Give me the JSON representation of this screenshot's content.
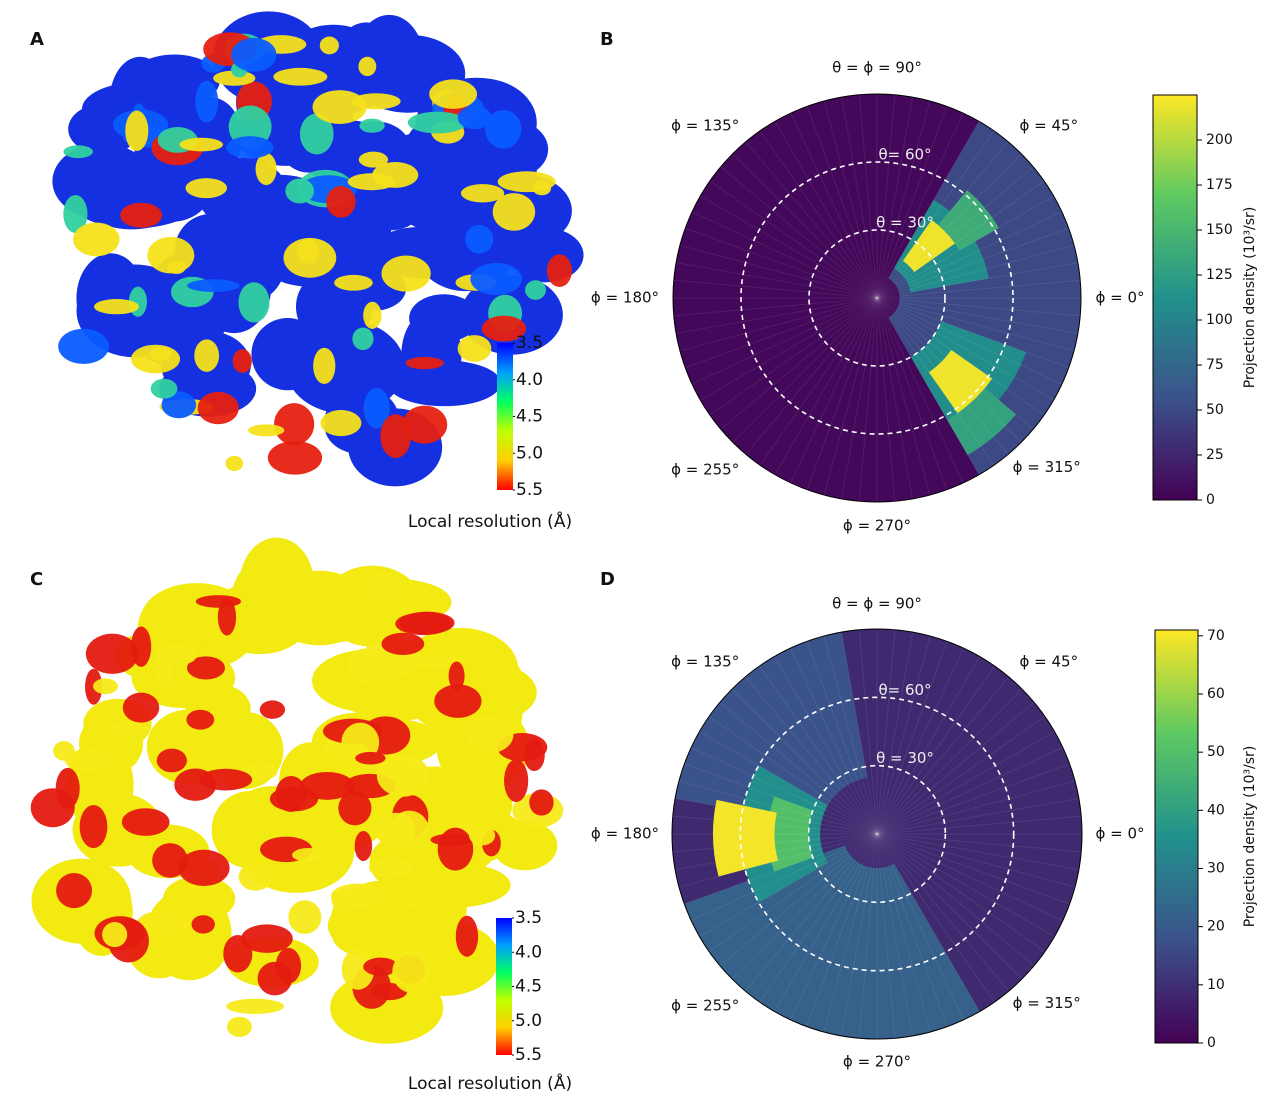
{
  "panels": [
    {
      "label": "A",
      "type": "map",
      "style": "mixed",
      "colorbar": {
        "title": "Local resolution (Å)",
        "lim": [
          3.5,
          5.5
        ],
        "ticks": [
          3.5,
          {
            "value": 4,
            "label": "4.0"
          },
          4.5,
          {
            "value": 5,
            "label": "5.0"
          },
          5.5
        ]
      }
    },
    {
      "label": "B",
      "type": "polar",
      "angle_labels": [
        "θ = ϕ = 90°",
        "ϕ = 45°",
        "ϕ = 0°",
        "ϕ = 315°",
        "ϕ = 270°",
        "ϕ = 255°",
        "ϕ = 180°",
        "ϕ = 135°"
      ],
      "rlim": [
        0,
        90
      ],
      "theta_circles": [
        {
          "value": 60,
          "label": "θ= 60°"
        },
        {
          "value": 30,
          "label": "θ = 30°"
        }
      ],
      "colorbar": {
        "title": "Projection density (10³/sr)",
        "lim": [
          0,
          225
        ],
        "ticks": [
          0,
          25,
          50,
          75,
          100,
          125,
          150,
          175,
          200
        ]
      },
      "sectors": [
        {
          "phi": [
            0,
            360
          ],
          "theta": [
            0,
            90
          ],
          "value": 5
        },
        {
          "phi": [
            -60,
            60
          ],
          "theta": [
            10,
            90
          ],
          "value": 50
        },
        {
          "phi": [
            10,
            60
          ],
          "theta": [
            15,
            50
          ],
          "value": 110
        },
        {
          "phi": [
            35,
            55
          ],
          "theta": [
            20,
            42
          ],
          "value": 220
        },
        {
          "phi": [
            30,
            50
          ],
          "theta": [
            42,
            62
          ],
          "value": 140
        },
        {
          "phi": [
            300,
            340
          ],
          "theta": [
            30,
            70
          ],
          "value": 110
        },
        {
          "phi": [
            305,
            325
          ],
          "theta": [
            40,
            62
          ],
          "value": 220
        },
        {
          "phi": [
            300,
            320
          ],
          "theta": [
            62,
            80
          ],
          "value": 130
        }
      ]
    },
    {
      "label": "C",
      "type": "map",
      "style": "low",
      "colorbar": {
        "title": "Local resolution (Å)",
        "lim": [
          3.5,
          5.5
        ],
        "ticks": [
          3.5,
          {
            "value": 4,
            "label": "4.0"
          },
          4.5,
          {
            "value": 5,
            "label": "5.0"
          },
          5.5
        ]
      }
    },
    {
      "label": "D",
      "type": "polar",
      "angle_labels": [
        "θ = ϕ = 90°",
        "ϕ = 45°",
        "ϕ = 0°",
        "ϕ = 315°",
        "ϕ = 270°",
        "ϕ = 255°",
        "ϕ = 180°",
        "ϕ = 135°"
      ],
      "rlim": [
        0,
        90
      ],
      "theta_circles": [
        {
          "value": 60,
          "label": "θ= 60°"
        },
        {
          "value": 30,
          "label": "θ = 30°"
        }
      ],
      "colorbar": {
        "title": "Projection density (10³/sr)",
        "lim": [
          0,
          71
        ],
        "ticks": [
          0,
          10,
          20,
          30,
          40,
          50,
          60,
          70
        ]
      },
      "sectors": [
        {
          "phi": [
            0,
            360
          ],
          "theta": [
            0,
            90
          ],
          "value": 9
        },
        {
          "phi": [
            100,
            170
          ],
          "theta": [
            25,
            90
          ],
          "value": 18
        },
        {
          "phi": [
            200,
            300
          ],
          "theta": [
            15,
            90
          ],
          "value": 22
        },
        {
          "phi": [
            150,
            210
          ],
          "theta": [
            25,
            60
          ],
          "value": 35
        },
        {
          "phi": [
            160,
            200
          ],
          "theta": [
            30,
            48
          ],
          "value": 50
        },
        {
          "phi": [
            168,
            195
          ],
          "theta": [
            45,
            72
          ],
          "value": 70
        }
      ]
    }
  ]
}
